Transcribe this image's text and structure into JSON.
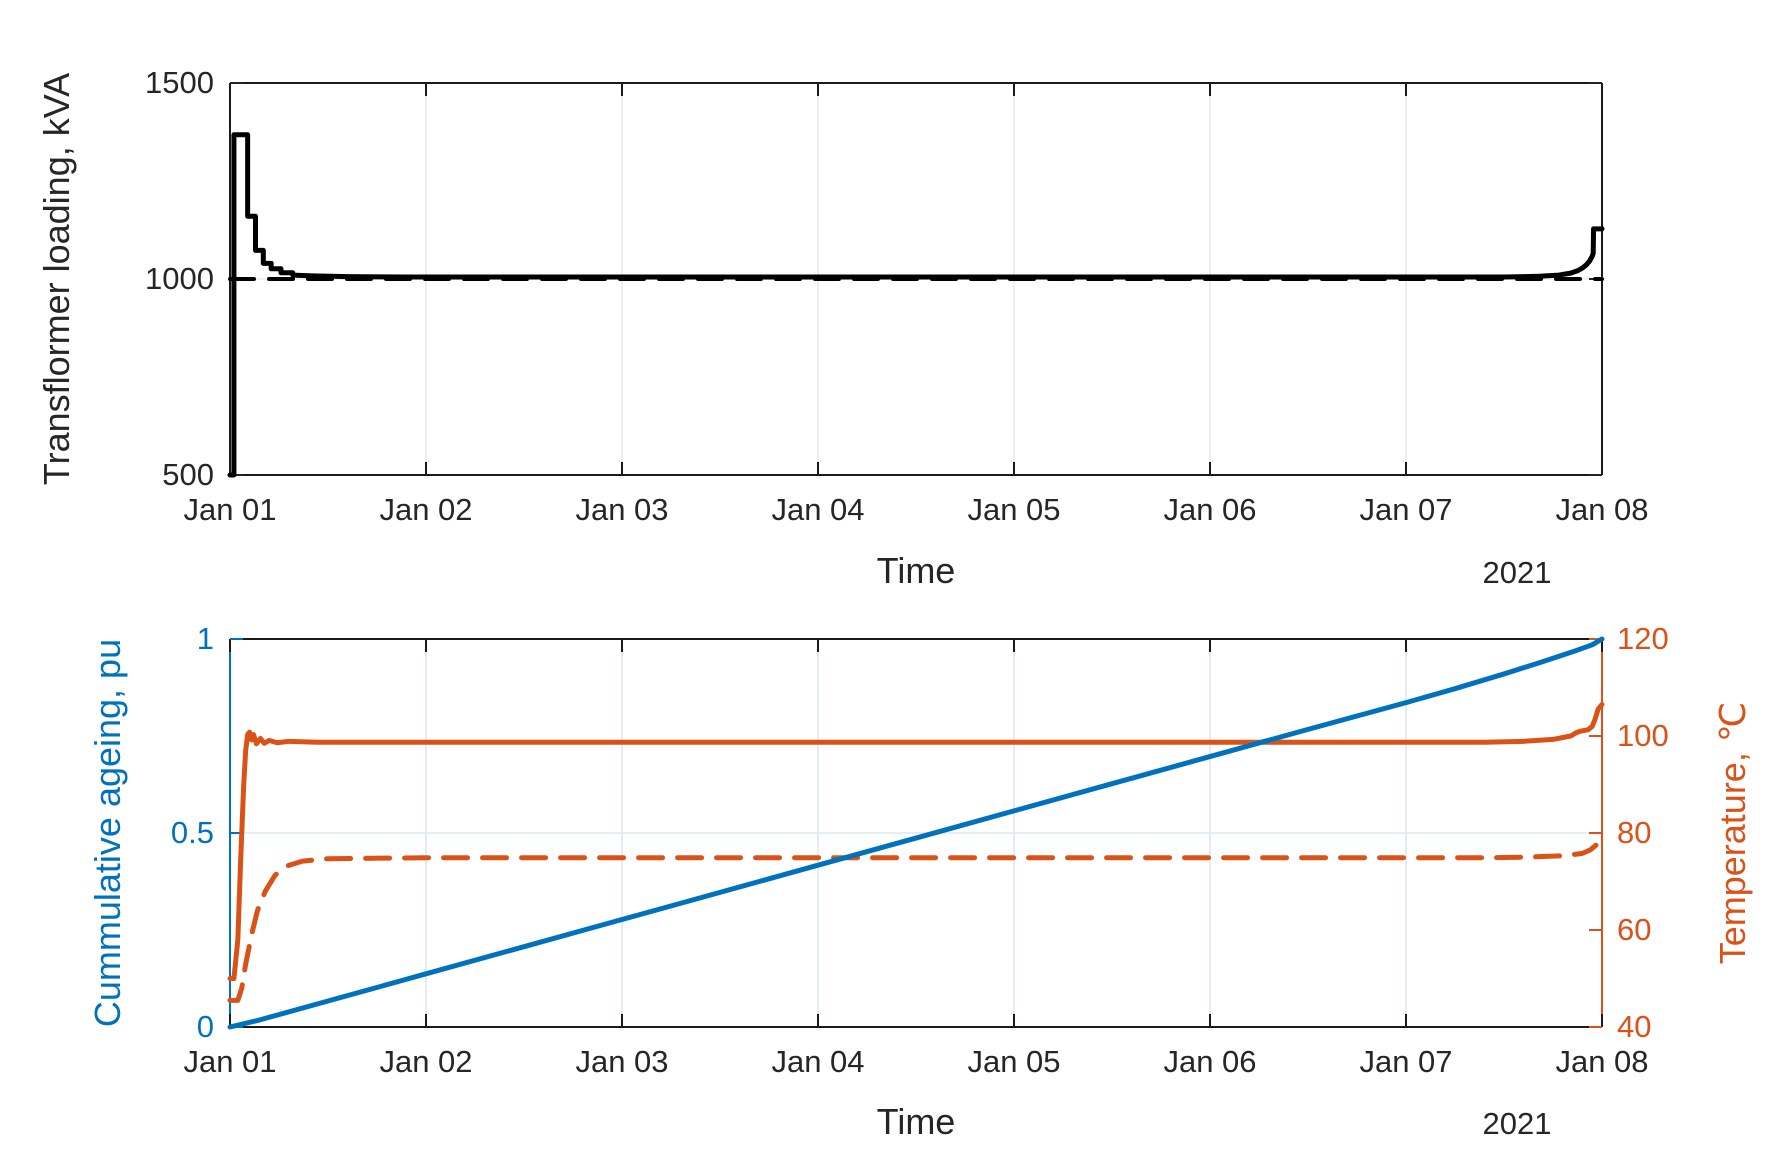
{
  "colors": {
    "line_black": "#000000",
    "ageing_blue": "#0072BD",
    "temperature_orange": "#D95319",
    "axis_text": "#262626",
    "axis_line": "#1a1a1a",
    "grid_top_chart": "#ebebeb",
    "grid_bottom_chart": "#dce8f2"
  },
  "chart_data": [
    {
      "type": "line",
      "title": "",
      "xlabel": "Time",
      "ylabel": "Transflormer loading, kVA",
      "year_label": "2021",
      "x_tick_labels": [
        "Jan 01",
        "Jan 02",
        "Jan 03",
        "Jan 04",
        "Jan 05",
        "Jan 06",
        "Jan 07",
        "Jan 08"
      ],
      "xlim_days": [
        0,
        7
      ],
      "ylim": [
        500,
        1500
      ],
      "y_ticks": [
        500,
        1000,
        1500
      ],
      "y_tick_labels": [
        "500",
        "1000",
        "1500"
      ],
      "grid": true,
      "series": [
        {
          "id": "rated-capacity-dashed-line",
          "style": "dashed",
          "color": "#000000",
          "width": 4,
          "axis": "left",
          "points": [
            [
              0,
              1000
            ],
            [
              7,
              1000
            ]
          ]
        },
        {
          "id": "transformer-loading-curve",
          "style": "solid",
          "color": "#000000",
          "width": 5,
          "axis": "left",
          "points": [
            [
              0,
              500
            ],
            [
              0.02,
              500
            ],
            [
              0.02,
              1368
            ],
            [
              0.09,
              1368
            ],
            [
              0.09,
              1160
            ],
            [
              0.13,
              1160
            ],
            [
              0.13,
              1073
            ],
            [
              0.17,
              1073
            ],
            [
              0.17,
              1040
            ],
            [
              0.21,
              1040
            ],
            [
              0.21,
              1026
            ],
            [
              0.26,
              1026
            ],
            [
              0.26,
              1016
            ],
            [
              0.32,
              1016
            ],
            [
              0.32,
              1010
            ],
            [
              0.42,
              1008
            ],
            [
              0.6,
              1006
            ],
            [
              0.9,
              1005
            ],
            [
              3.5,
              1005
            ],
            [
              6.5,
              1005
            ],
            [
              6.68,
              1007
            ],
            [
              6.78,
              1010
            ],
            [
              6.84,
              1015
            ],
            [
              6.875,
              1021
            ],
            [
              6.9,
              1028
            ],
            [
              6.92,
              1036
            ],
            [
              6.937,
              1046
            ],
            [
              6.95,
              1058
            ],
            [
              6.955,
              1065
            ],
            [
              6.957,
              1128
            ],
            [
              7,
              1128
            ]
          ]
        }
      ]
    },
    {
      "type": "line",
      "title": "",
      "xlabel": "Time",
      "ylabel_left": "Cummulative ageing, pu",
      "ylabel_right": "Temperature, ℃",
      "year_label": "2021",
      "x_tick_labels": [
        "Jan 01",
        "Jan 02",
        "Jan 03",
        "Jan 04",
        "Jan 05",
        "Jan 06",
        "Jan 07",
        "Jan 08"
      ],
      "xlim_days": [
        0,
        7
      ],
      "ylim_left": [
        0,
        1
      ],
      "y_ticks_left": [
        0,
        0.5,
        1
      ],
      "y_tick_labels_left": [
        "0",
        "0.5",
        "1"
      ],
      "ylim_right": [
        40,
        120
      ],
      "y_ticks_right": [
        40,
        60,
        80,
        100,
        120
      ],
      "y_tick_labels_right": [
        "40",
        "60",
        "80",
        "100",
        "120"
      ],
      "grid": true,
      "series": [
        {
          "id": "hot-spot-temperature-curve",
          "style": "solid",
          "color": "#D95319",
          "width": 5,
          "axis": "right",
          "points": [
            [
              0,
              50
            ],
            [
              0.02,
              50
            ],
            [
              0.04,
              58
            ],
            [
              0.055,
              75
            ],
            [
              0.07,
              90
            ],
            [
              0.08,
              97
            ],
            [
              0.09,
              100.3
            ],
            [
              0.1,
              100.8
            ],
            [
              0.11,
              99.2
            ],
            [
              0.12,
              100.3
            ],
            [
              0.135,
              98.4
            ],
            [
              0.155,
              99.5
            ],
            [
              0.175,
              98.5
            ],
            [
              0.2,
              99.1
            ],
            [
              0.24,
              98.6
            ],
            [
              0.3,
              98.9
            ],
            [
              0.45,
              98.7
            ],
            [
              3,
              98.7
            ],
            [
              6.4,
              98.7
            ],
            [
              6.6,
              98.9
            ],
            [
              6.75,
              99.3
            ],
            [
              6.84,
              100
            ],
            [
              6.87,
              100.7
            ],
            [
              6.89,
              101
            ],
            [
              6.93,
              101.3
            ],
            [
              6.95,
              102
            ],
            [
              6.965,
              103.5
            ],
            [
              6.98,
              105.5
            ],
            [
              7,
              106.5
            ]
          ]
        },
        {
          "id": "top-oil-temperature-curve",
          "style": "dashed",
          "color": "#D95319",
          "width": 5,
          "axis": "right",
          "points": [
            [
              0,
              45.5
            ],
            [
              0.04,
              45.5
            ],
            [
              0.06,
              48
            ],
            [
              0.08,
              53
            ],
            [
              0.11,
              59
            ],
            [
              0.14,
              64
            ],
            [
              0.18,
              68
            ],
            [
              0.23,
              71.3
            ],
            [
              0.29,
              73.2
            ],
            [
              0.37,
              74.2
            ],
            [
              0.5,
              74.7
            ],
            [
              1,
              74.9
            ],
            [
              6.4,
              74.9
            ],
            [
              6.6,
              75
            ],
            [
              6.8,
              75.3
            ],
            [
              6.9,
              75.8
            ],
            [
              6.94,
              76.5
            ],
            [
              6.97,
              77.5
            ],
            [
              7,
              79.5
            ]
          ]
        },
        {
          "id": "cumulative-ageing-curve",
          "style": "solid",
          "color": "#0072BD",
          "width": 5,
          "axis": "left",
          "points": [
            [
              0,
              0
            ],
            [
              0.15,
              0.018
            ],
            [
              0.5,
              0.067
            ],
            [
              1,
              0.137
            ],
            [
              1.5,
              0.207
            ],
            [
              2,
              0.277
            ],
            [
              2.5,
              0.347
            ],
            [
              3,
              0.417
            ],
            [
              3.5,
              0.487
            ],
            [
              4,
              0.557
            ],
            [
              4.5,
              0.627
            ],
            [
              5,
              0.697
            ],
            [
              5.5,
              0.767
            ],
            [
              6,
              0.836
            ],
            [
              6.25,
              0.872
            ],
            [
              6.5,
              0.91
            ],
            [
              6.7,
              0.942
            ],
            [
              6.85,
              0.967
            ],
            [
              6.95,
              0.985
            ],
            [
              7,
              1.0
            ]
          ]
        }
      ]
    }
  ]
}
